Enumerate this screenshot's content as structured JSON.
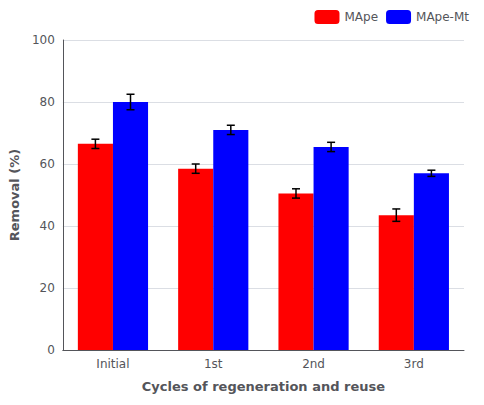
{
  "chart_data": {
    "type": "bar",
    "categories": [
      "Initial",
      "1st",
      "2nd",
      "3rd"
    ],
    "series": [
      {
        "name": "MApe",
        "color": "#FF0000",
        "values": [
          66.5,
          58.5,
          50.5,
          43.5
        ],
        "errors": [
          1.5,
          1.5,
          1.5,
          2.0
        ]
      },
      {
        "name": "MApe-Mt",
        "color": "#0000FF",
        "values": [
          80.0,
          71.0,
          65.5,
          57.0
        ],
        "errors": [
          2.5,
          1.5,
          1.5,
          1.0
        ]
      }
    ],
    "xlabel": "Cycles of regeneration and reuse",
    "ylabel": "Removal (%)",
    "ylim": [
      0,
      100
    ],
    "yticks": [
      0,
      20,
      40,
      60,
      80,
      100
    ],
    "grid": true,
    "legend": "upper right"
  }
}
